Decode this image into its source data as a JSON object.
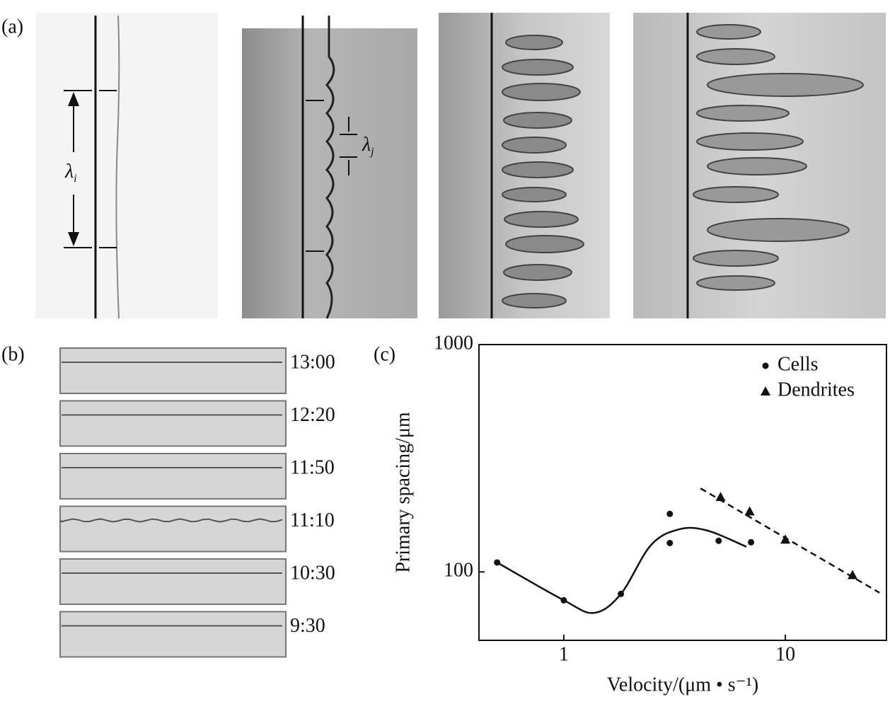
{
  "panels": {
    "a": "(a)",
    "b": "(b)",
    "c": "(c)"
  },
  "lambda_i": {
    "symbol": "λ",
    "subscript": "i"
  },
  "lambda_j": {
    "symbol": "λ",
    "subscript": "j"
  },
  "strips": [
    "13:00",
    "12:20",
    "11:50",
    "11:10",
    "10:30",
    "9:30"
  ],
  "chart_data": {
    "type": "scatter",
    "log_x": true,
    "log_y": true,
    "xlabel": "Velocity/(μm • s⁻¹)",
    "ylabel": "Primary spacing/μm",
    "xlim": [
      0.414,
      28.6
    ],
    "ylim": [
      50,
      1000
    ],
    "xticks": [
      1,
      10
    ],
    "yticks": [
      100,
      1000
    ],
    "legend": "upper right",
    "grid": false,
    "series": [
      {
        "name": "Cells",
        "color": "#111111",
        "marker": "circle",
        "line_style": "solid",
        "x": [
          0.5,
          1,
          1.81,
          3.01,
          3.01,
          5.0,
          7.0
        ],
        "values": [
          110,
          75,
          80,
          180,
          134,
          137,
          135
        ],
        "line": {
          "x": [
            0.5,
            1,
            1.37,
            1.81,
            2.47,
            3.32,
            4.45,
            6.67
          ],
          "values": [
            110,
            75,
            66,
            80,
            131,
            154,
            152,
            129
          ]
        }
      },
      {
        "name": "Dendrites",
        "color": "#111111",
        "marker": "triangle",
        "line_style": "dashed",
        "x": [
          5.1,
          6.9,
          10,
          20.1
        ],
        "values": [
          214,
          185,
          139,
          97
        ],
        "line": {
          "x": [
            4.14,
            26.6
          ],
          "values": [
            233,
            81
          ]
        }
      }
    ]
  }
}
